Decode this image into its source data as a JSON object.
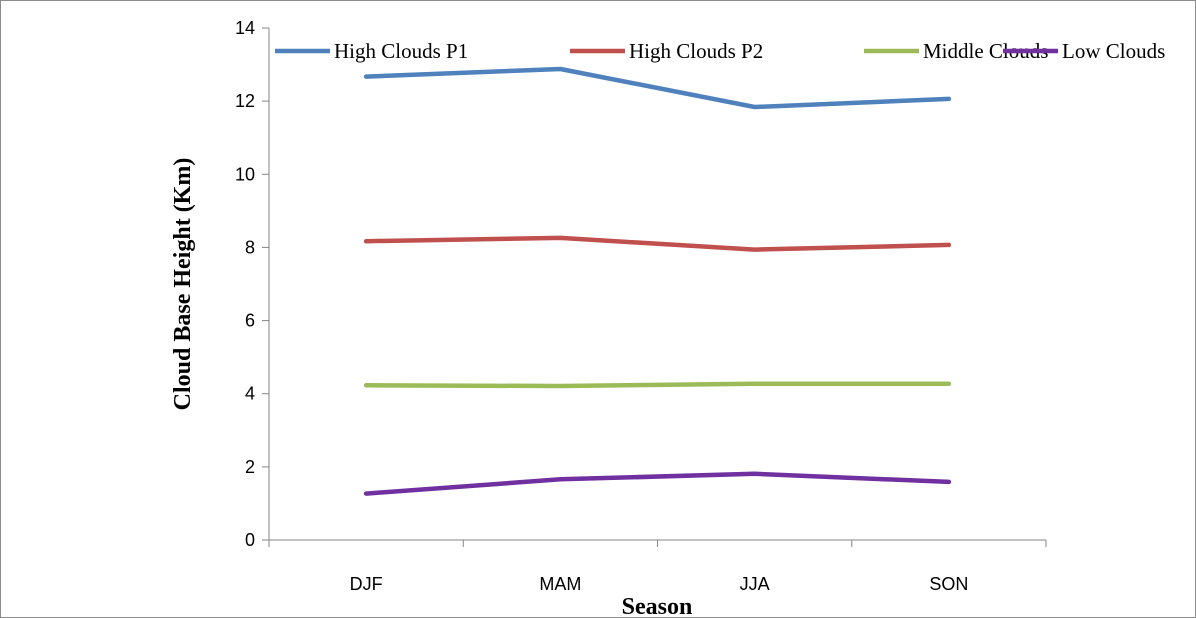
{
  "chart_data": {
    "type": "line",
    "categories": [
      "DJF",
      "MAM",
      "JJA",
      "SON"
    ],
    "series": [
      {
        "name": "High Clouds P1",
        "color": "#4F81BD",
        "values": [
          12.67,
          12.88,
          11.84,
          12.06
        ]
      },
      {
        "name": "High Clouds P2",
        "color": "#C0504D",
        "values": [
          8.17,
          8.26,
          7.94,
          8.07
        ]
      },
      {
        "name": "Middle Clouds",
        "color": "#9BBB59",
        "values": [
          4.23,
          4.21,
          4.27,
          4.27
        ]
      },
      {
        "name": "Low Clouds",
        "color": "#7030A0",
        "values": [
          1.27,
          1.66,
          1.81,
          1.59
        ]
      }
    ],
    "xlabel": "Season",
    "ylabel": "Cloud Base Height (Km)",
    "ylim": [
      0,
      14
    ],
    "yticks": [
      0,
      2,
      4,
      6,
      8,
      10,
      12,
      14
    ],
    "grid": false,
    "legend_position": "top"
  }
}
